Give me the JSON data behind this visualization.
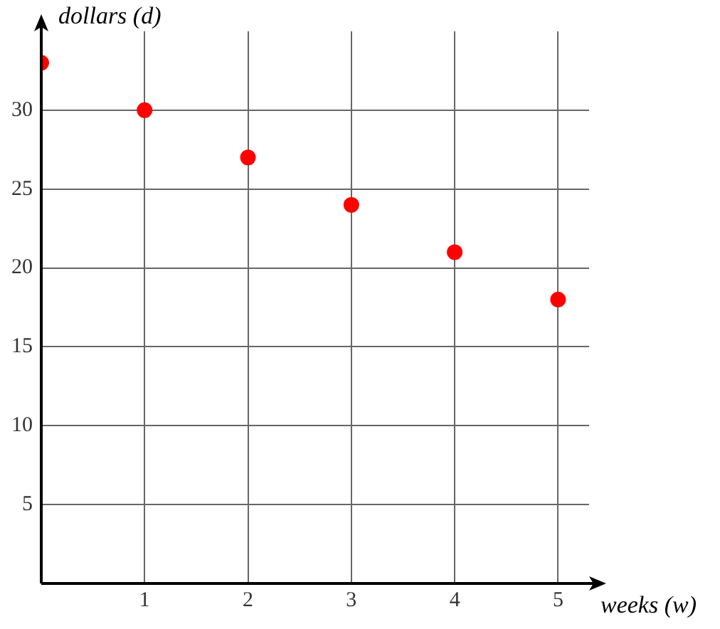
{
  "chart_data": {
    "type": "scatter",
    "xlabel": "weeks (w)",
    "ylabel": "dollars (d)",
    "x": [
      0,
      1,
      2,
      3,
      4,
      5
    ],
    "series": [
      {
        "color": "#ff0000",
        "values": [
          33,
          30,
          27,
          24,
          21,
          18
        ]
      }
    ],
    "xlim": [
      0,
      5.3
    ],
    "ylim": [
      0,
      35
    ],
    "xticks": [
      1,
      2,
      3,
      4,
      5
    ],
    "yticks": [
      5,
      10,
      15,
      20,
      25,
      30
    ],
    "grid": true,
    "legend": false,
    "marker": "circle"
  }
}
